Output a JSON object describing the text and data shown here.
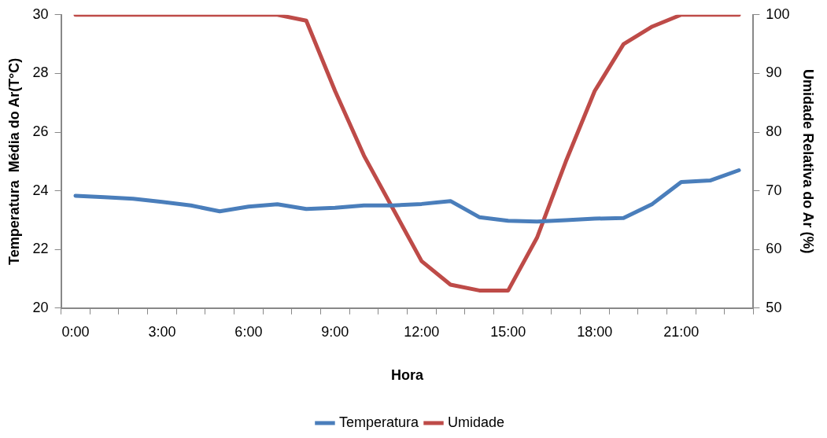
{
  "chart_data": {
    "type": "line",
    "xlabel": "Hora",
    "ylabel": "Temperatura  Média do Ar(T°C)",
    "y2label": "Umidade Relativa do Ar (%)",
    "categories": [
      "0:00",
      null,
      null,
      "3:00",
      null,
      null,
      "6:00",
      null,
      null,
      "9:00",
      null,
      null,
      "12:00",
      null,
      null,
      "15:00",
      null,
      null,
      "18:00",
      null,
      null,
      "21:00",
      null,
      null
    ],
    "series": [
      {
        "name": "Temperatura",
        "color": "#4a7ebb",
        "values": [
          23.83,
          23.78,
          23.73,
          23.62,
          23.5,
          23.3,
          23.46,
          23.54,
          23.38,
          23.42,
          23.5,
          23.5,
          23.55,
          23.65,
          23.1,
          22.98,
          22.95,
          23.0,
          23.05,
          23.07,
          23.55,
          24.3,
          24.35,
          24.7
        ]
      },
      {
        "name": "Umidade",
        "color": "#be4b48",
        "axis": "y2",
        "values": [
          100,
          100,
          100,
          100,
          100,
          100,
          100,
          100,
          99,
          87,
          76,
          67,
          58,
          54,
          53,
          53,
          62,
          75,
          87,
          95,
          98,
          100,
          100,
          100
        ]
      }
    ],
    "ylim": [
      20,
      30
    ],
    "yticks": [
      20,
      22,
      24,
      26,
      28,
      30
    ],
    "y2lim": [
      50,
      100
    ],
    "y2ticks": [
      50,
      60,
      70,
      80,
      90,
      100
    ],
    "grid": false,
    "legend": "bottom",
    "marker": "none",
    "line_style": "solid"
  }
}
